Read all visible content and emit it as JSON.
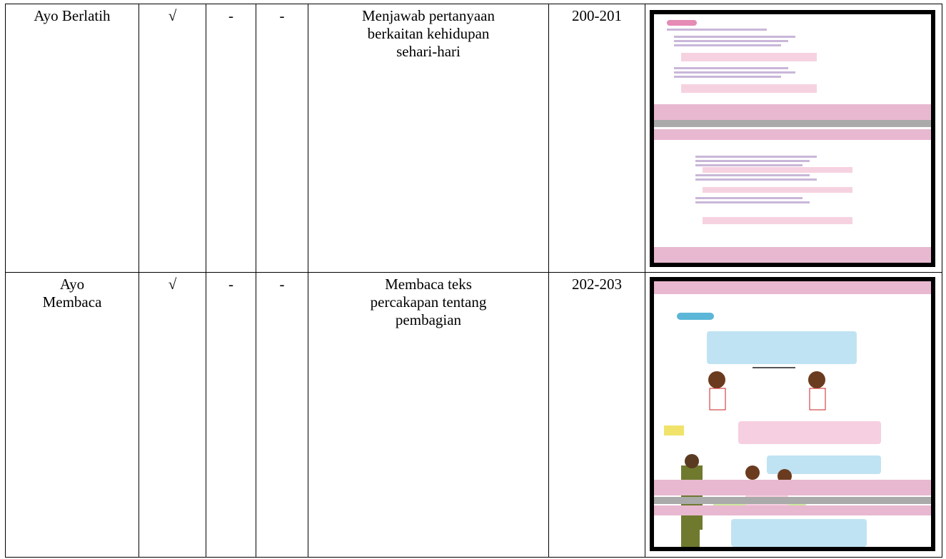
{
  "table": {
    "rows": [
      [
        "Ayo Berlatih",
        "√",
        "-",
        "-",
        "Menjawab pertanyaan berkaitan kehidupan sehari-hari",
        "200-201"
      ],
      [
        "Ayo Membaca",
        "√",
        "-",
        "-",
        "Membaca teks percakapan tentang pembagian",
        "202-203"
      ]
    ]
  }
}
